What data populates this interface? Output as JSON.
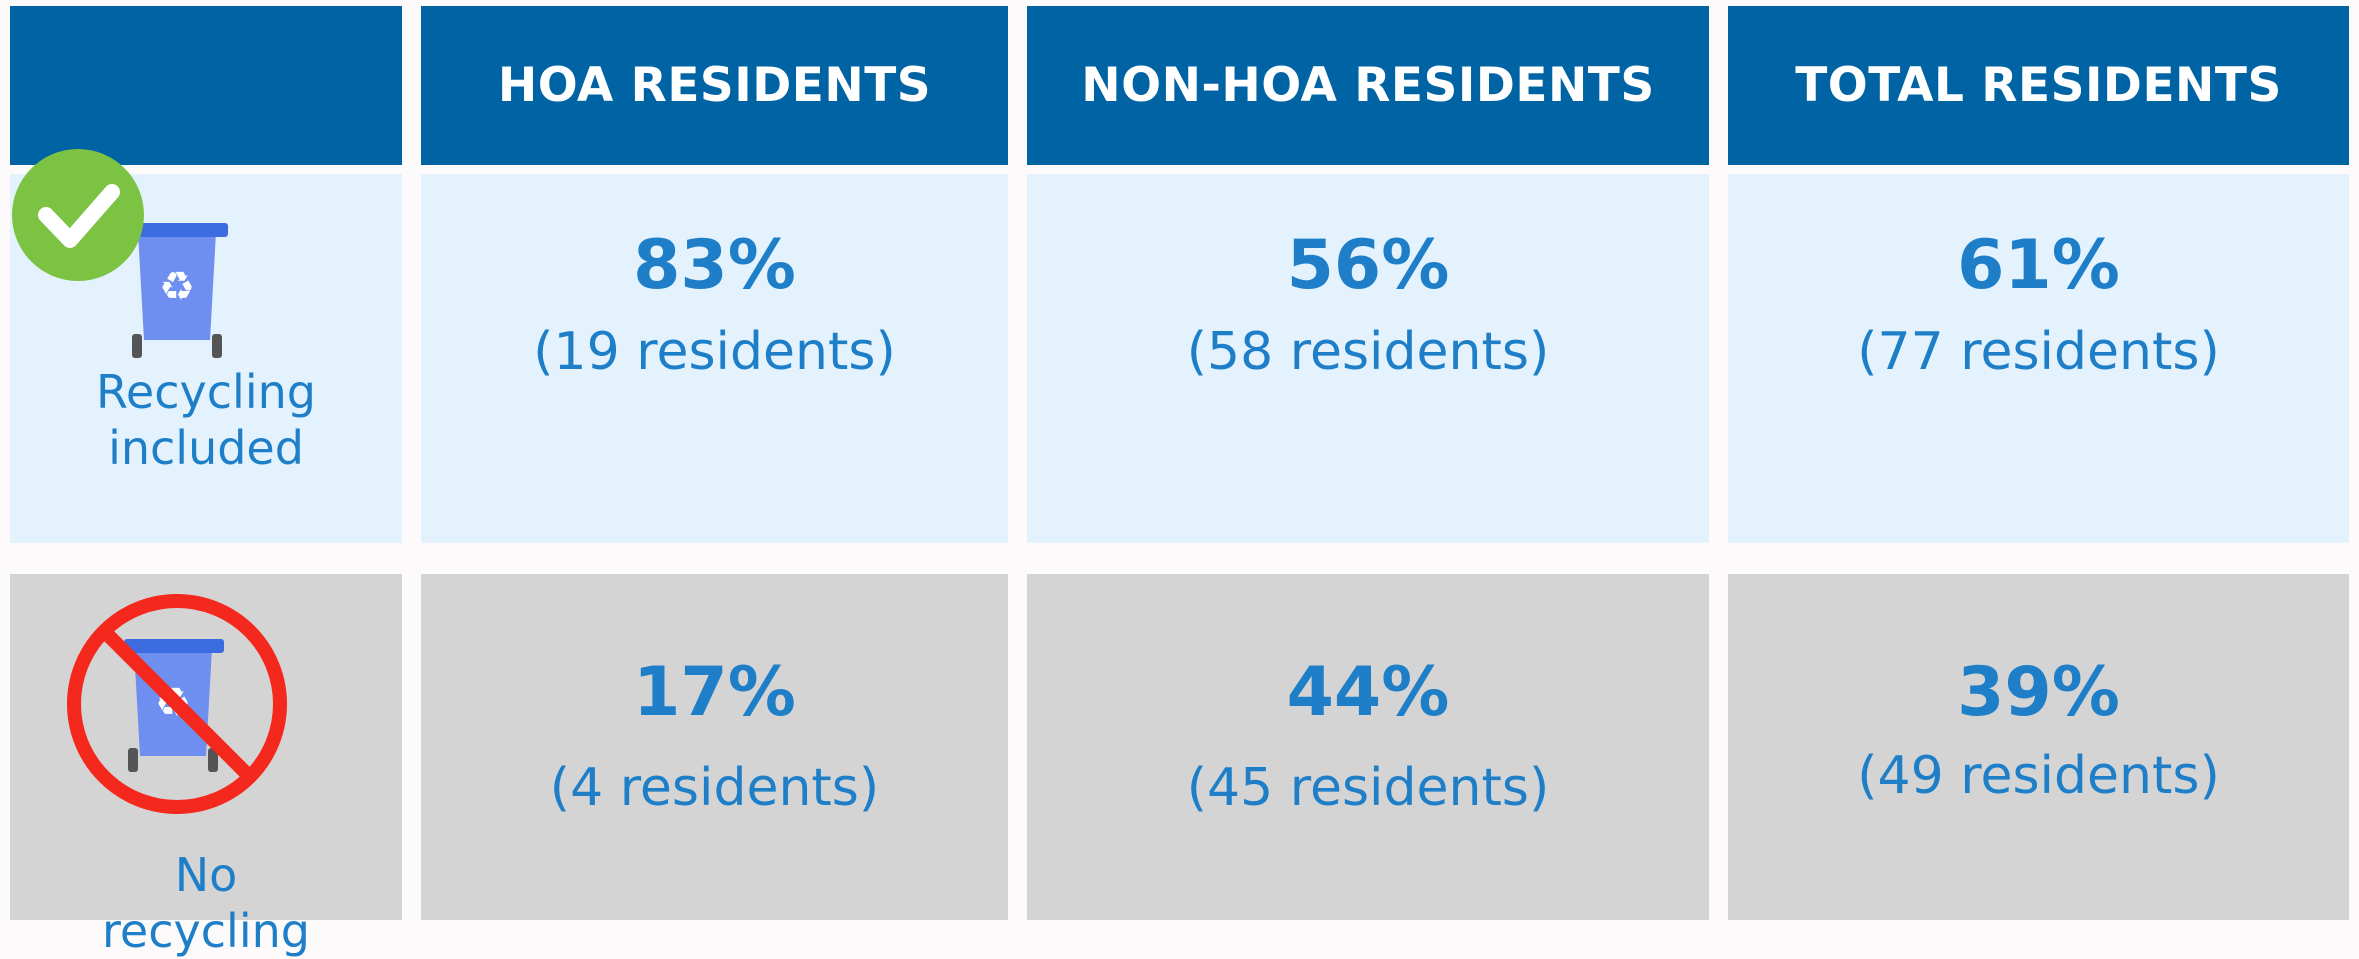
{
  "table": {
    "header": [
      "HOA RESIDENTS",
      "NON-HOA RESIDENTS",
      "TOTAL RESIDENTS"
    ],
    "rows": [
      {
        "label": "Recycling included",
        "cells": [
          {
            "percent": "83%",
            "count": "(19 residents)"
          },
          {
            "percent": "56%",
            "count": "(58 residents)"
          },
          {
            "percent": "61%",
            "count": "(77 residents)"
          }
        ]
      },
      {
        "label": "No recycling",
        "cells": [
          {
            "percent": "17%",
            "count": "(4 residents)"
          },
          {
            "percent": "44%",
            "count": "(45 residents)"
          },
          {
            "percent": "39%",
            "count": "(49 residents)"
          }
        ]
      }
    ]
  }
}
